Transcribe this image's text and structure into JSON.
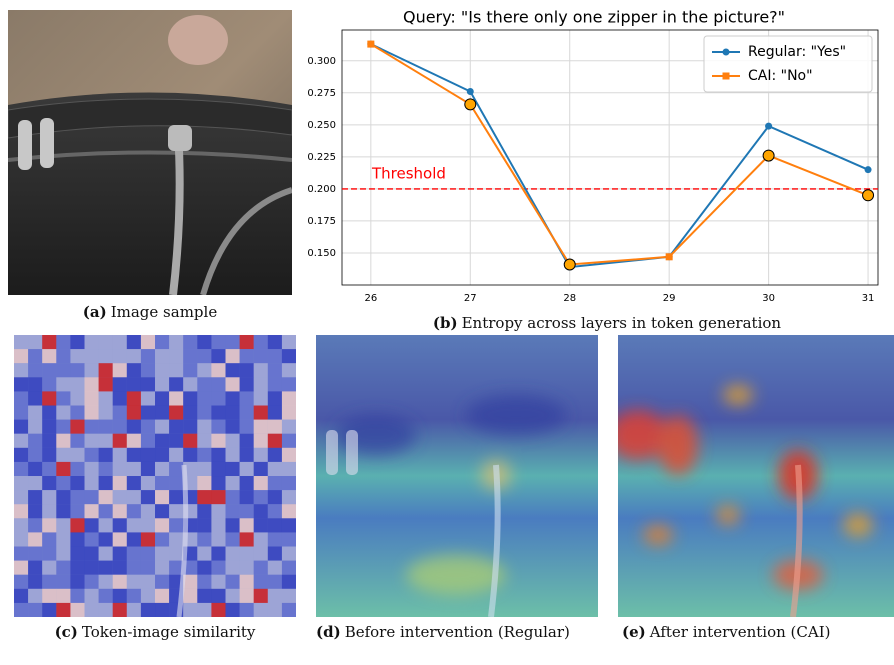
{
  "chart_data": {
    "type": "line",
    "title": "Query: \"Is there only one zipper in the picture?\"",
    "x": [
      26,
      27,
      28,
      29,
      30,
      31
    ],
    "series": [
      {
        "name": "Regular: \"Yes\"",
        "color": "#1f77b4",
        "marker": "o",
        "values": [
          0.313,
          0.276,
          0.139,
          0.147,
          0.249,
          0.215
        ]
      },
      {
        "name": "CAI: \"No\"",
        "color": "#ff7f0e",
        "marker": "s",
        "values": [
          0.313,
          0.266,
          0.141,
          0.147,
          0.226,
          0.195
        ],
        "highlight": {
          "indices": [
            1,
            2,
            4,
            5
          ],
          "color": "#ffa500",
          "edge": "#000000"
        }
      }
    ],
    "xlim": [
      25.71,
      31.1
    ],
    "ylim": [
      0.125,
      0.324
    ],
    "xticks": [
      26,
      27,
      28,
      29,
      30,
      31
    ],
    "yticks": [
      {
        "value": 0.15,
        "label": "0.150"
      },
      0.175,
      {
        "value": 0.2,
        "label": "0.200"
      },
      0.225,
      {
        "value": 0.25,
        "label": "0.250"
      },
      0.275,
      {
        "value": 0.3,
        "label": "0.300"
      }
    ],
    "grid": true,
    "legend": "upper right",
    "annotations": [
      {
        "text": "Threshold",
        "value": 0.2,
        "color": "#ff0000"
      }
    ]
  },
  "captions": [
    {
      "label": "(a)",
      "text": "Image sample"
    },
    {
      "label": "(b)",
      "text": "Entropy across layers in token generation"
    },
    {
      "label": "(c)",
      "text": "Token-image similarity"
    },
    {
      "label": "(d)",
      "text": "Before intervention (Regular)"
    },
    {
      "label": "(e)",
      "text": "After intervention (CAI)"
    }
  ]
}
